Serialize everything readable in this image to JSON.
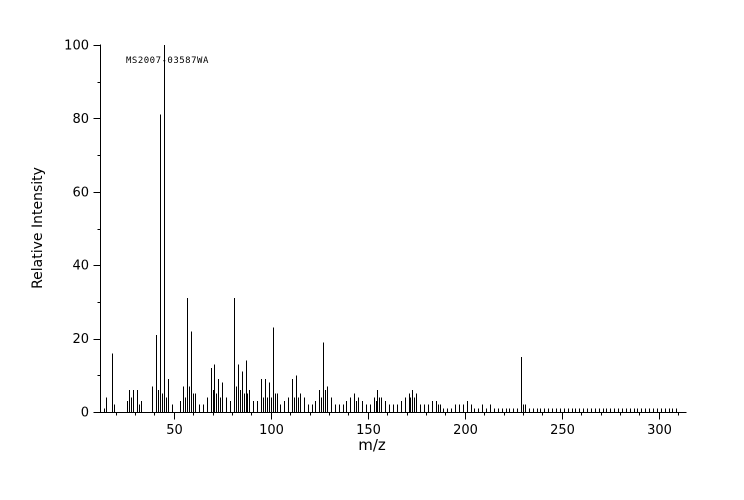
{
  "chart_data": {
    "type": "bar",
    "subtype": "mass-spectrum",
    "title": "",
    "label": "MS2007-03587WA",
    "xlabel": "m/z",
    "ylabel": "Relative Intensity",
    "xlim": [
      12,
      314
    ],
    "ylim": [
      0,
      100
    ],
    "xticks": [
      50,
      100,
      150,
      200,
      250,
      300
    ],
    "xtick_minor_step": 10,
    "yticks": [
      0,
      20,
      40,
      60,
      80,
      100
    ],
    "ytick_minor_step": 10,
    "grid": "off",
    "legend": "none",
    "bar_color": "#000000",
    "peaks": [
      [
        14,
        1
      ],
      [
        15,
        4
      ],
      [
        18,
        16
      ],
      [
        19,
        2
      ],
      [
        26,
        3
      ],
      [
        27,
        6
      ],
      [
        28,
        4
      ],
      [
        29,
        6
      ],
      [
        31,
        6
      ],
      [
        32,
        2
      ],
      [
        33,
        3
      ],
      [
        39,
        7
      ],
      [
        41,
        21
      ],
      [
        42,
        6
      ],
      [
        43,
        81
      ],
      [
        44,
        5
      ],
      [
        45,
        100
      ],
      [
        46,
        4
      ],
      [
        47,
        9
      ],
      [
        49,
        2
      ],
      [
        53,
        3
      ],
      [
        55,
        7
      ],
      [
        56,
        4
      ],
      [
        57,
        31
      ],
      [
        58,
        7
      ],
      [
        59,
        22
      ],
      [
        60,
        5
      ],
      [
        61,
        5
      ],
      [
        63,
        2
      ],
      [
        65,
        2
      ],
      [
        67,
        4
      ],
      [
        69,
        12
      ],
      [
        70,
        6
      ],
      [
        71,
        13
      ],
      [
        72,
        5
      ],
      [
        73,
        9
      ],
      [
        74,
        4
      ],
      [
        75,
        8
      ],
      [
        77,
        4
      ],
      [
        79,
        3
      ],
      [
        81,
        31
      ],
      [
        82,
        7
      ],
      [
        83,
        13
      ],
      [
        84,
        6
      ],
      [
        85,
        11
      ],
      [
        86,
        5
      ],
      [
        87,
        14
      ],
      [
        88,
        5
      ],
      [
        89,
        6
      ],
      [
        91,
        3
      ],
      [
        93,
        3
      ],
      [
        95,
        9
      ],
      [
        96,
        4
      ],
      [
        97,
        9
      ],
      [
        98,
        4
      ],
      [
        99,
        8
      ],
      [
        100,
        4
      ],
      [
        101,
        23
      ],
      [
        102,
        5
      ],
      [
        103,
        5
      ],
      [
        105,
        2
      ],
      [
        107,
        3
      ],
      [
        109,
        4
      ],
      [
        111,
        9
      ],
      [
        112,
        4
      ],
      [
        113,
        10
      ],
      [
        114,
        4
      ],
      [
        115,
        5
      ],
      [
        117,
        4
      ],
      [
        119,
        2
      ],
      [
        121,
        2
      ],
      [
        123,
        3
      ],
      [
        125,
        6
      ],
      [
        126,
        4
      ],
      [
        127,
        19
      ],
      [
        128,
        6
      ],
      [
        129,
        7
      ],
      [
        131,
        4
      ],
      [
        133,
        2
      ],
      [
        135,
        2
      ],
      [
        137,
        2
      ],
      [
        139,
        3
      ],
      [
        141,
        4
      ],
      [
        143,
        5
      ],
      [
        144,
        3
      ],
      [
        145,
        4
      ],
      [
        147,
        3
      ],
      [
        149,
        2
      ],
      [
        151,
        2
      ],
      [
        153,
        4
      ],
      [
        154,
        3
      ],
      [
        155,
        6
      ],
      [
        156,
        4
      ],
      [
        157,
        4
      ],
      [
        159,
        3
      ],
      [
        161,
        2
      ],
      [
        163,
        2
      ],
      [
        165,
        2
      ],
      [
        167,
        3
      ],
      [
        169,
        4
      ],
      [
        171,
        5
      ],
      [
        172,
        4
      ],
      [
        173,
        6
      ],
      [
        174,
        4
      ],
      [
        175,
        5
      ],
      [
        177,
        2
      ],
      [
        179,
        2
      ],
      [
        181,
        2
      ],
      [
        183,
        3
      ],
      [
        185,
        3
      ],
      [
        186,
        2
      ],
      [
        187,
        2
      ],
      [
        189,
        1
      ],
      [
        191,
        1
      ],
      [
        193,
        1
      ],
      [
        195,
        2
      ],
      [
        197,
        2
      ],
      [
        199,
        2
      ],
      [
        201,
        3
      ],
      [
        203,
        2
      ],
      [
        205,
        1
      ],
      [
        207,
        1
      ],
      [
        209,
        2
      ],
      [
        211,
        1
      ],
      [
        213,
        2
      ],
      [
        215,
        1
      ],
      [
        217,
        1
      ],
      [
        219,
        1
      ],
      [
        221,
        1
      ],
      [
        223,
        1
      ],
      [
        225,
        1
      ],
      [
        227,
        1
      ],
      [
        229,
        15
      ],
      [
        230,
        2
      ],
      [
        231,
        2
      ],
      [
        233,
        1
      ],
      [
        235,
        1
      ],
      [
        237,
        1
      ],
      [
        239,
        1
      ],
      [
        241,
        1
      ],
      [
        243,
        1
      ],
      [
        245,
        1
      ],
      [
        247,
        1
      ],
      [
        249,
        1
      ],
      [
        251,
        1
      ],
      [
        253,
        1
      ],
      [
        255,
        1
      ],
      [
        257,
        1
      ],
      [
        259,
        1
      ],
      [
        261,
        1
      ],
      [
        263,
        1
      ],
      [
        265,
        1
      ],
      [
        267,
        1
      ],
      [
        269,
        1
      ],
      [
        271,
        1
      ],
      [
        273,
        1
      ],
      [
        275,
        1
      ],
      [
        277,
        1
      ],
      [
        279,
        1
      ],
      [
        281,
        1
      ],
      [
        283,
        1
      ],
      [
        285,
        1
      ],
      [
        287,
        1
      ],
      [
        289,
        1
      ],
      [
        291,
        1
      ],
      [
        293,
        1
      ],
      [
        295,
        1
      ],
      [
        297,
        1
      ],
      [
        299,
        1
      ],
      [
        301,
        1
      ],
      [
        303,
        1
      ],
      [
        305,
        1
      ],
      [
        307,
        1
      ],
      [
        309,
        1
      ]
    ]
  }
}
